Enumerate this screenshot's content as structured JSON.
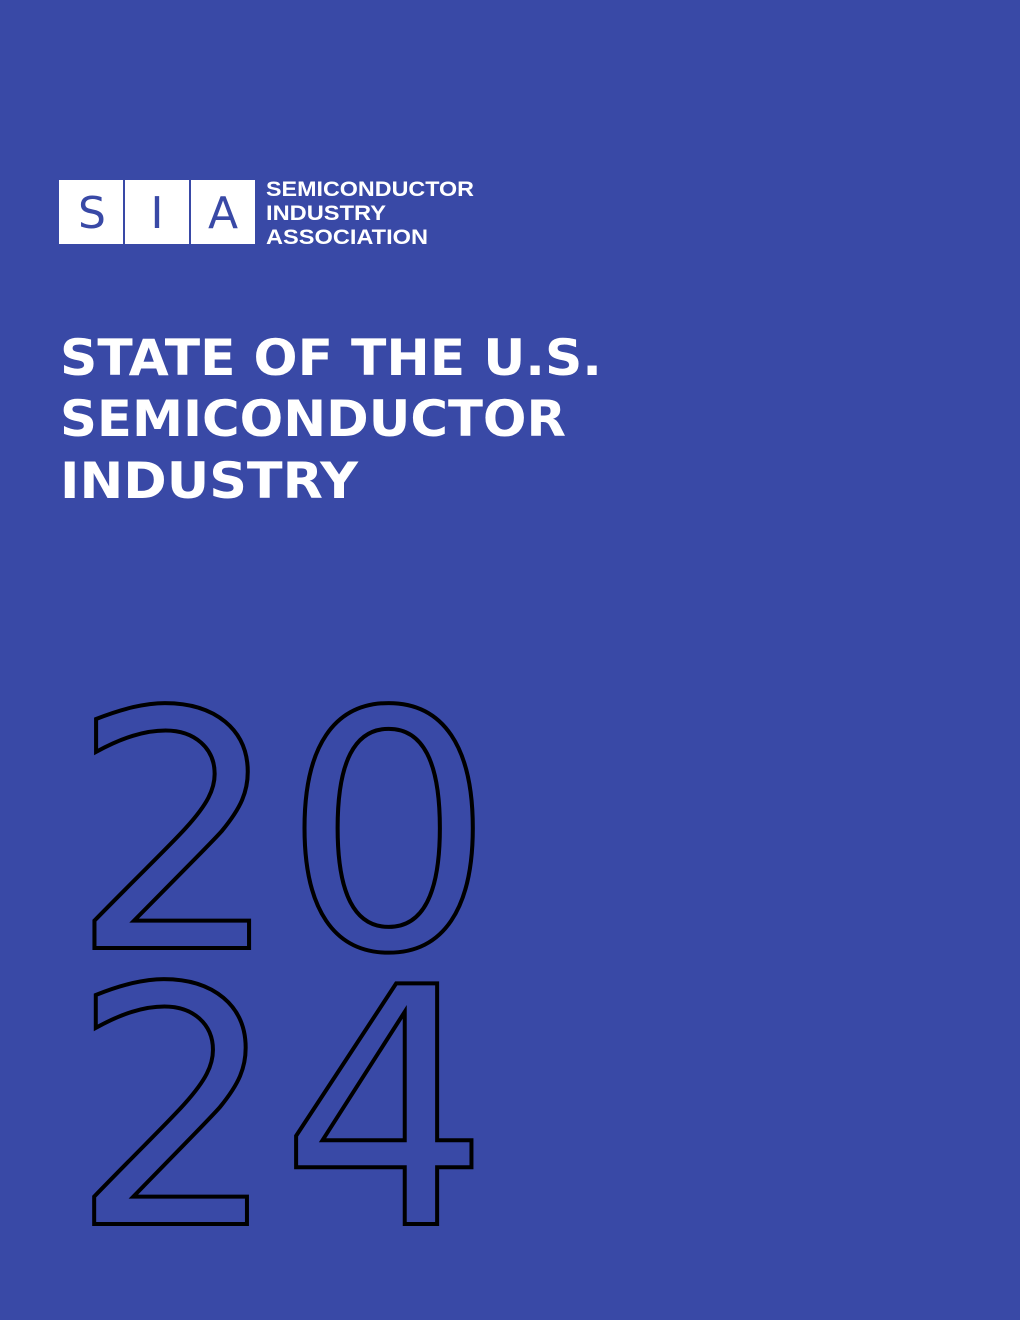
{
  "logo": {
    "letters": [
      "S",
      "I",
      "A"
    ],
    "lines": [
      "SEMICONDUCTOR",
      "INDUSTRY",
      "ASSOCIATION"
    ]
  },
  "title": {
    "lines": [
      "STATE OF THE U.S.",
      "SEMICONDUCTOR",
      "INDUSTRY"
    ]
  },
  "year": {
    "lines": [
      "20",
      "24"
    ]
  }
}
